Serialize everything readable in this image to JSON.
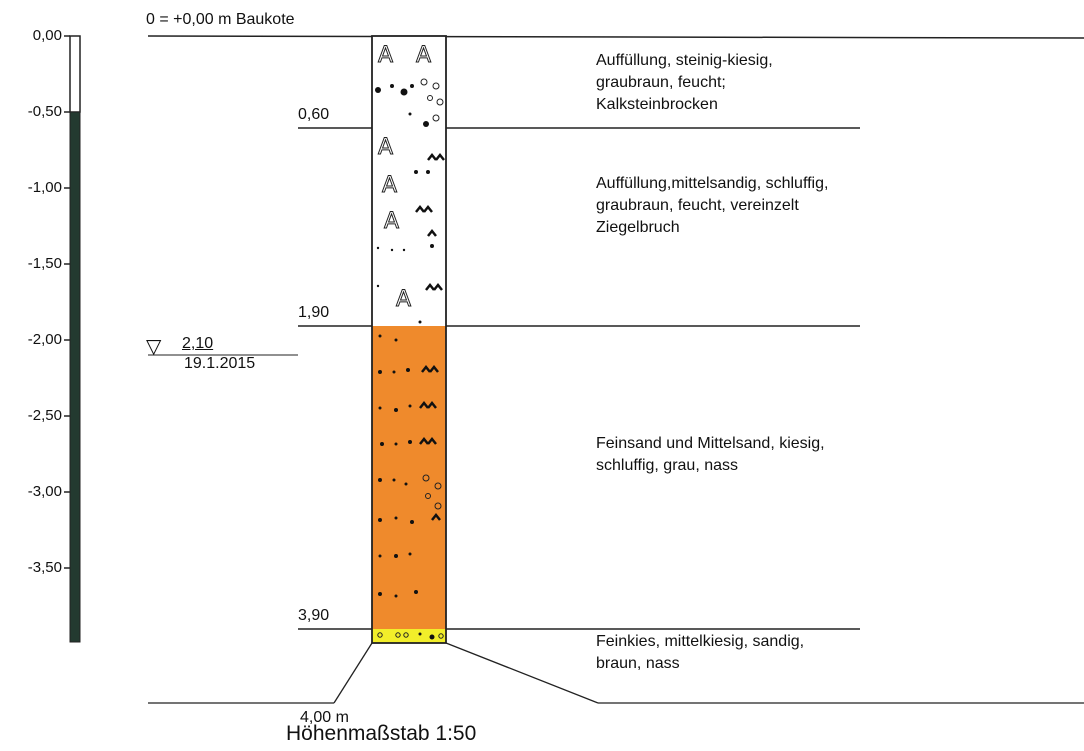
{
  "reference_label": "0 = +0,00 m Baukote",
  "scale_labels": [
    "0,00",
    "-0,50",
    "-1,00",
    "-1,50",
    "-2,00",
    "-2,50",
    "-3,00",
    "-3,50"
  ],
  "groundwater": {
    "symbol": "▽",
    "depth": "2,10",
    "date": "19.1.2015"
  },
  "layers": [
    {
      "bottom_label": "0,60",
      "description": "Auffüllung, steinig-kiesig, graubraun, feucht; Kalksteinbrocken",
      "fill": "#ffffff"
    },
    {
      "bottom_label": "1,90",
      "description": "Auffüllung,mittelsandig, schluffig, graubraun, feucht, vereinzelt Ziegelbruch",
      "fill": "#ffffff"
    },
    {
      "bottom_label": "3,90",
      "description": "Feinsand und Mittelsand, kiesig, schluffig, grau, nass",
      "fill": "#ef8a2c"
    },
    {
      "bottom_label": "",
      "description": "Feinkies, mittelkiesig, sandig, braun, nass",
      "fill": "#f2ee2a"
    }
  ],
  "end_depth": "4,00 m",
  "scale_title": "Höhenmaßstab 1:50",
  "colors": {
    "scale_bar": "#233a30",
    "sand_layer": "#ef8a2c",
    "gravel_layer": "#f2ee2a",
    "line": "#222222"
  }
}
